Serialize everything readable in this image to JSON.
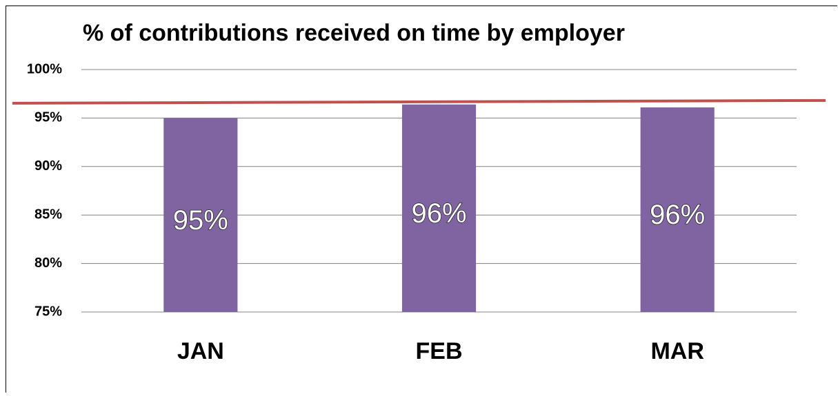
{
  "chart_data": {
    "type": "bar",
    "title": "% of contributions received on time by employer",
    "categories": [
      "JAN",
      "FEB",
      "MAR"
    ],
    "values": [
      95,
      96.4,
      96.1
    ],
    "value_labels": [
      "95%",
      "96%",
      "96%"
    ],
    "color": "#8064a2",
    "ylim": [
      75,
      100
    ],
    "yticks": [
      {
        "value": 75,
        "label": "75%"
      },
      {
        "value": 80,
        "label": "80%"
      },
      {
        "value": 85,
        "label": "85%"
      },
      {
        "value": 90,
        "label": "90%"
      },
      {
        "value": 95,
        "label": "95%"
      },
      {
        "value": 100,
        "label": "100%"
      }
    ],
    "grid": true,
    "target_line": {
      "value": 96.6,
      "color": "#c0504d"
    }
  }
}
